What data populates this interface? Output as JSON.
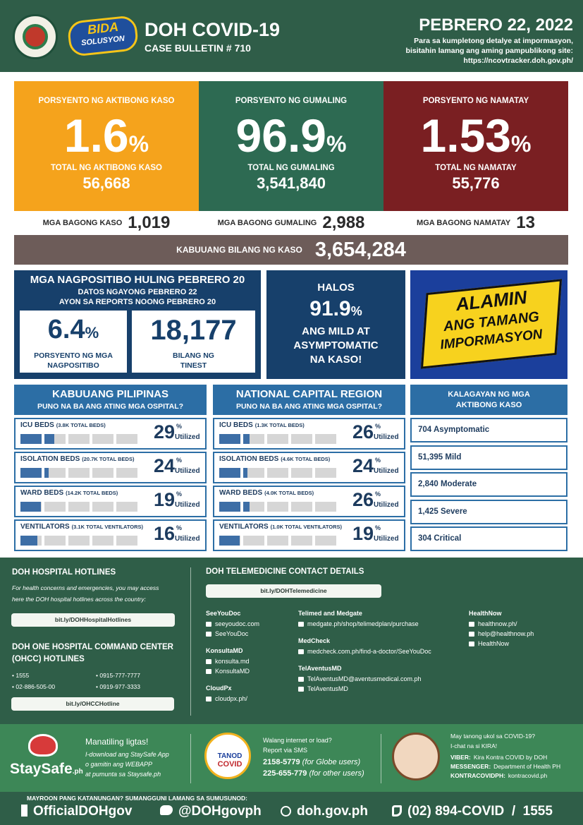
{
  "header": {
    "title": "DOH COVID-19",
    "subtitle": "CASE BULLETIN # 710",
    "date": "PEBRERO 22, 2022",
    "note": [
      "Para sa kumpletong detalye at impormasyon,",
      "bisitahin lamang ang aming pampublikong site:",
      "https://ncovtracker.doh.gov.ph/"
    ],
    "logo_text": [
      "BIDA",
      "SOLUSYON"
    ]
  },
  "stats": [
    {
      "label": "PORSYENTO NG AKTIBONG KASO",
      "percent": "1.6",
      "unit": "%",
      "total_label": "TOTAL NG AKTIBONG KASO",
      "total": "56,668",
      "new_label": "MGA BAGONG KASO",
      "new": "1,019",
      "color": "#f5a31c"
    },
    {
      "label": "PORSYENTO NG GUMALING",
      "percent": "96.9",
      "unit": "%",
      "total_label": "TOTAL NG GUMALING",
      "total": "3,541,840",
      "new_label": "MGA BAGONG GUMALING",
      "new": "2,988",
      "color": "#2d6a52"
    },
    {
      "label": "PORSYENTO NG NAMATAY",
      "percent": "1.53",
      "unit": "%",
      "total_label": "TOTAL NG NAMATAY",
      "total": "55,776",
      "new_label": "MGA BAGONG NAMATAY",
      "new": "13",
      "color": "#7a1f22"
    }
  ],
  "total": {
    "label": "KABUUANG BILANG NG KASO",
    "value": "3,654,284"
  },
  "positivity": {
    "title": "MGA NAGPOSITIBO HULING PEBRERO 20",
    "lines": [
      "DATOS NGAYONG PEBRERO 22",
      "AYON SA REPORTS NOONG PEBRERO 20"
    ],
    "rate": "6.4",
    "unit": "%",
    "rate_label": [
      "PORSYENTO NG MGA",
      "NAGPOSITIBO"
    ],
    "tested": "18,177",
    "tested_label": [
      "BILANG NG",
      "TINEST"
    ]
  },
  "mild": {
    "lead": "HALOS",
    "value": "91.9",
    "unit": "%",
    "lines": [
      "ANG MILD AT",
      "ASYMPTOMATIC",
      "NA KASO!"
    ]
  },
  "banner": {
    "lines": [
      "ALAMIN",
      "ANG TAMANG",
      "IMPORMASYON"
    ]
  },
  "hospitals": {
    "unit": "%",
    "utilized": "Utilized",
    "regions": [
      {
        "title": "KABUUANG PILIPINAS",
        "subtitle": "PUNO NA BA ANG ATING MGA OSPITAL?",
        "rows": [
          {
            "name": "ICU BEDS",
            "detail": "(3.8K TOTAL BEDS)",
            "value": 29
          },
          {
            "name": "ISOLATION BEDS",
            "detail": "(20.7K TOTAL BEDS)",
            "value": 24
          },
          {
            "name": "WARD BEDS",
            "detail": "(14.2K TOTAL BEDS)",
            "value": 19
          },
          {
            "name": "VENTILATORS",
            "detail": "(3.1K TOTAL VENTILATORS)",
            "value": 16
          }
        ]
      },
      {
        "title": "NATIONAL CAPITAL REGION",
        "subtitle": "PUNO NA BA ANG ATING MGA OSPITAL?",
        "rows": [
          {
            "name": "ICU BEDS",
            "detail": "(1.3K TOTAL BEDS)",
            "value": 26
          },
          {
            "name": "ISOLATION BEDS",
            "detail": "(4.6K TOTAL BEDS)",
            "value": 24
          },
          {
            "name": "WARD BEDS",
            "detail": "(4.0K TOTAL BEDS)",
            "value": 26
          },
          {
            "name": "VENTILATORS",
            "detail": "(1.0K TOTAL VENTILATORS)",
            "value": 19
          }
        ]
      }
    ]
  },
  "status": {
    "title": [
      "KALAGAYAN NG MGA",
      "AKTIBONG KASO"
    ],
    "items": [
      "704 Asymptomatic",
      "51,395 Mild",
      "2,840 Moderate",
      "1,425 Severe",
      "304 Critical"
    ]
  },
  "hotlines": {
    "title": "DOH HOSPITAL HOTLINES",
    "text": [
      "For health concerns and emergencies, you may access",
      "here the DOH hospital hotlines across the country:"
    ],
    "link": "bit.ly/DOHHospitalHotlines",
    "ohcc_title": [
      "DOH ONE HOSPITAL COMMAND CENTER",
      "(OHCC) HOTLINES"
    ],
    "numbers": [
      "• 1555",
      "• 0915-777-7777",
      "• 02-886-505-00",
      "• 0919-977-3333"
    ],
    "ohcc_link": "bit.ly/OHCCHotline"
  },
  "telemedicine": {
    "title": "DOH TELEMEDICINE CONTACT DETAILS",
    "link": "bit.ly/DOHTelemedicine",
    "columns": [
      [
        {
          "name": "SeeYouDoc",
          "items": [
            "seeyoudoc.com",
            "SeeYouDoc"
          ]
        },
        {
          "name": "KonsultaMD",
          "items": [
            "konsulta.md",
            "KonsultaMD"
          ]
        },
        {
          "name": "CloudPx",
          "items": [
            "cloudpx.ph/"
          ]
        }
      ],
      [
        {
          "name": "Telimed and Medgate",
          "items": [
            "medgate.ph/shop/telimedplan/purchase"
          ]
        },
        {
          "name": "MedCheck",
          "items": [
            "medcheck.com.ph/find-a-doctor/SeeYouDoc"
          ]
        },
        {
          "name": "TelAventusMD",
          "items": [
            "TelAventusMD@aventusmedical.com.ph",
            "TelAventusMD"
          ]
        }
      ],
      [
        {
          "name": "HealthNow",
          "items": [
            "healthnow.ph/",
            "help@healthnow.ph",
            "HealthNow"
          ]
        }
      ]
    ]
  },
  "staysafe": {
    "logo": "StaySafe",
    "logo_suffix": ".ph",
    "title": "Manatiling ligtas!",
    "lines": [
      "I-download ang StaySafe App",
      "o gamitin ang WEBAPP",
      "at pumunta sa Staysafe.ph"
    ]
  },
  "tanod": {
    "logo": [
      "TANOD",
      "COVID"
    ],
    "lines": [
      "Walang internet or load?",
      "Report via SMS"
    ],
    "sms": [
      {
        "number": "2158-5779",
        "note": "(for Globe users)"
      },
      {
        "number": "225-655-779",
        "note": "(for other users)"
      }
    ]
  },
  "kira": {
    "lines": [
      "May tanong ukol sa COVID-19?",
      "I-chat na si KIRA!"
    ],
    "channels": [
      {
        "label": "VIBER:",
        "value": "Kira Kontra COVID by DOH"
      },
      {
        "label": "MESSENGER:",
        "value": "Department of Health PH"
      },
      {
        "label": "KONTRACOVIDPH:",
        "value": "kontracovid.ph"
      }
    ]
  },
  "footer": {
    "prompt": "MAYROON PANG KATANUNGAN? SUMANGGUNI LAMANG SA SUMUSUNOD:",
    "facebook": "OfficialDOHgov",
    "twitter": "@DOHgovph",
    "website": "doh.gov.ph",
    "phone": "(02) 894-COVID  /  1555"
  }
}
